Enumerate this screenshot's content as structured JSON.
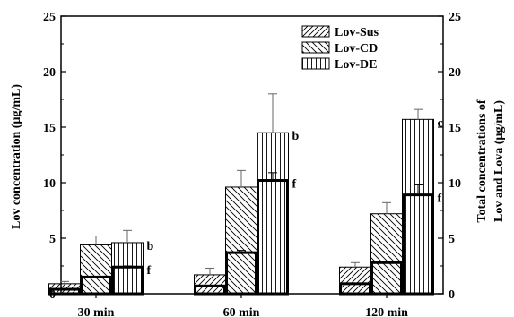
{
  "chart_data": {
    "type": "bar",
    "title": "",
    "xlabel": "",
    "ylabel": "Lov concentration (µg/mL)",
    "ylabel_right": [
      "Total concentrations of",
      "Lov and Lova (µg/mL)"
    ],
    "ylim": [
      0,
      25
    ],
    "yticks": [
      "0",
      "5",
      "10",
      "15",
      "20",
      "25"
    ],
    "categories": [
      "30 min",
      "60 min",
      "120 min"
    ],
    "legend_position": "top-right",
    "legend": [
      "Lov-Sus",
      "Lov-CD",
      "Lov-DE"
    ],
    "series": [
      {
        "name": "Lov-Sus",
        "pattern": "diag-up",
        "total": [
          0.9,
          1.7,
          2.4
        ],
        "total_err": [
          0.2,
          0.6,
          0.4
        ],
        "lov": [
          0.4,
          0.7,
          0.9
        ],
        "lov_err": [
          0.0,
          0.0,
          0.0
        ]
      },
      {
        "name": "Lov-CD",
        "pattern": "diag-down",
        "total": [
          4.4,
          9.6,
          7.2
        ],
        "total_err": [
          0.8,
          1.5,
          1.0
        ],
        "lov": [
          1.5,
          3.7,
          2.8
        ],
        "lov_err": [
          0.0,
          0.2,
          0.0
        ]
      },
      {
        "name": "Lov-DE",
        "pattern": "vertical",
        "total": [
          4.6,
          14.5,
          15.7
        ],
        "total_err": [
          1.1,
          3.5,
          0.9
        ],
        "lov": [
          2.4,
          10.2,
          8.9
        ],
        "lov_err": [
          0.1,
          0.7,
          0.9
        ]
      }
    ],
    "annotations": [
      {
        "category": 0,
        "series": 2,
        "at": "total",
        "text": "b"
      },
      {
        "category": 0,
        "series": 2,
        "at": "lov",
        "text": "f"
      },
      {
        "category": 1,
        "series": 2,
        "at": "total",
        "text": "b"
      },
      {
        "category": 1,
        "series": 2,
        "at": "lov",
        "text": "f"
      },
      {
        "category": 2,
        "series": 2,
        "at": "total",
        "text": "c"
      },
      {
        "category": 2,
        "series": 2,
        "at": "lov",
        "text": "f"
      }
    ]
  }
}
